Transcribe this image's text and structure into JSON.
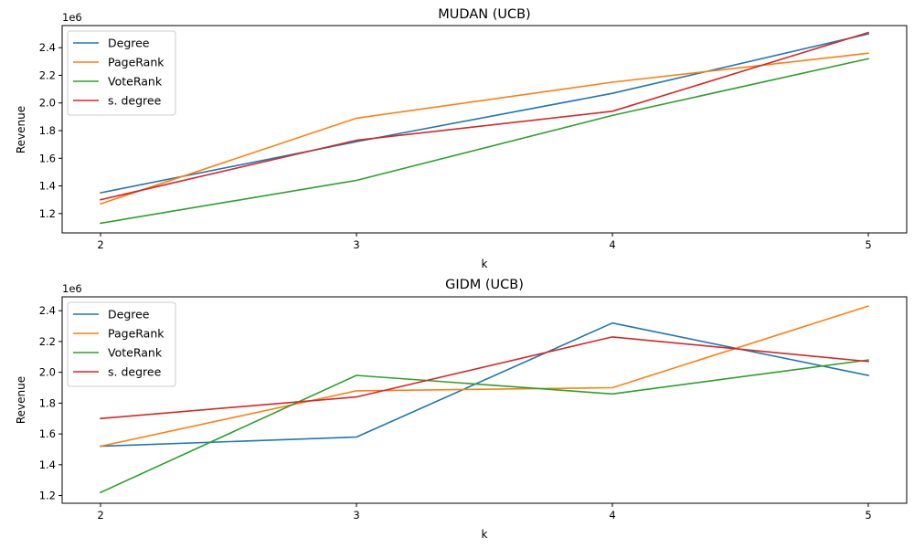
{
  "chart_data": [
    {
      "type": "line",
      "title": "MUDAN (UCB)",
      "xlabel": "k",
      "ylabel": "Revenue",
      "y_offset_label": "1e6",
      "x": [
        2,
        3,
        4,
        5
      ],
      "xlim": [
        1.85,
        5.15
      ],
      "ylim": [
        1.06,
        2.56
      ],
      "yticks": [
        1.2,
        1.4,
        1.6,
        1.8,
        2.0,
        2.2,
        2.4
      ],
      "ytick_labels": [
        "1.2",
        "1.4",
        "1.6",
        "1.8",
        "2.0",
        "2.2",
        "2.4"
      ],
      "xticks": [
        2,
        3,
        4,
        5
      ],
      "xtick_labels": [
        "2",
        "3",
        "4",
        "5"
      ],
      "grid": false,
      "legend_position": "upper-left",
      "series": [
        {
          "name": "Degree",
          "color": "#1f77b4",
          "values": [
            1.35,
            1.72,
            2.07,
            2.5
          ]
        },
        {
          "name": "PageRank",
          "color": "#ff7f0e",
          "values": [
            1.27,
            1.89,
            2.15,
            2.36
          ]
        },
        {
          "name": "VoteRank",
          "color": "#2ca02c",
          "values": [
            1.13,
            1.44,
            1.91,
            2.32
          ]
        },
        {
          "name": "s. degree",
          "color": "#d62728",
          "values": [
            1.3,
            1.73,
            1.94,
            2.51
          ]
        }
      ]
    },
    {
      "type": "line",
      "title": "GIDM (UCB)",
      "xlabel": "k",
      "ylabel": "Revenue",
      "y_offset_label": "1e6",
      "x": [
        2,
        3,
        4,
        5
      ],
      "xlim": [
        1.85,
        5.15
      ],
      "ylim": [
        1.15,
        2.49
      ],
      "yticks": [
        1.2,
        1.4,
        1.6,
        1.8,
        2.0,
        2.2,
        2.4
      ],
      "ytick_labels": [
        "1.2",
        "1.4",
        "1.6",
        "1.8",
        "2.0",
        "2.2",
        "2.4"
      ],
      "xticks": [
        2,
        3,
        4,
        5
      ],
      "xtick_labels": [
        "2",
        "3",
        "4",
        "5"
      ],
      "grid": false,
      "legend_position": "upper-left",
      "series": [
        {
          "name": "Degree",
          "color": "#1f77b4",
          "values": [
            1.52,
            1.58,
            2.32,
            1.98
          ]
        },
        {
          "name": "PageRank",
          "color": "#ff7f0e",
          "values": [
            1.52,
            1.88,
            1.9,
            2.43
          ]
        },
        {
          "name": "VoteRank",
          "color": "#2ca02c",
          "values": [
            1.22,
            1.98,
            1.86,
            2.08
          ]
        },
        {
          "name": "s. degree",
          "color": "#d62728",
          "values": [
            1.7,
            1.84,
            2.23,
            2.07
          ]
        }
      ]
    }
  ]
}
